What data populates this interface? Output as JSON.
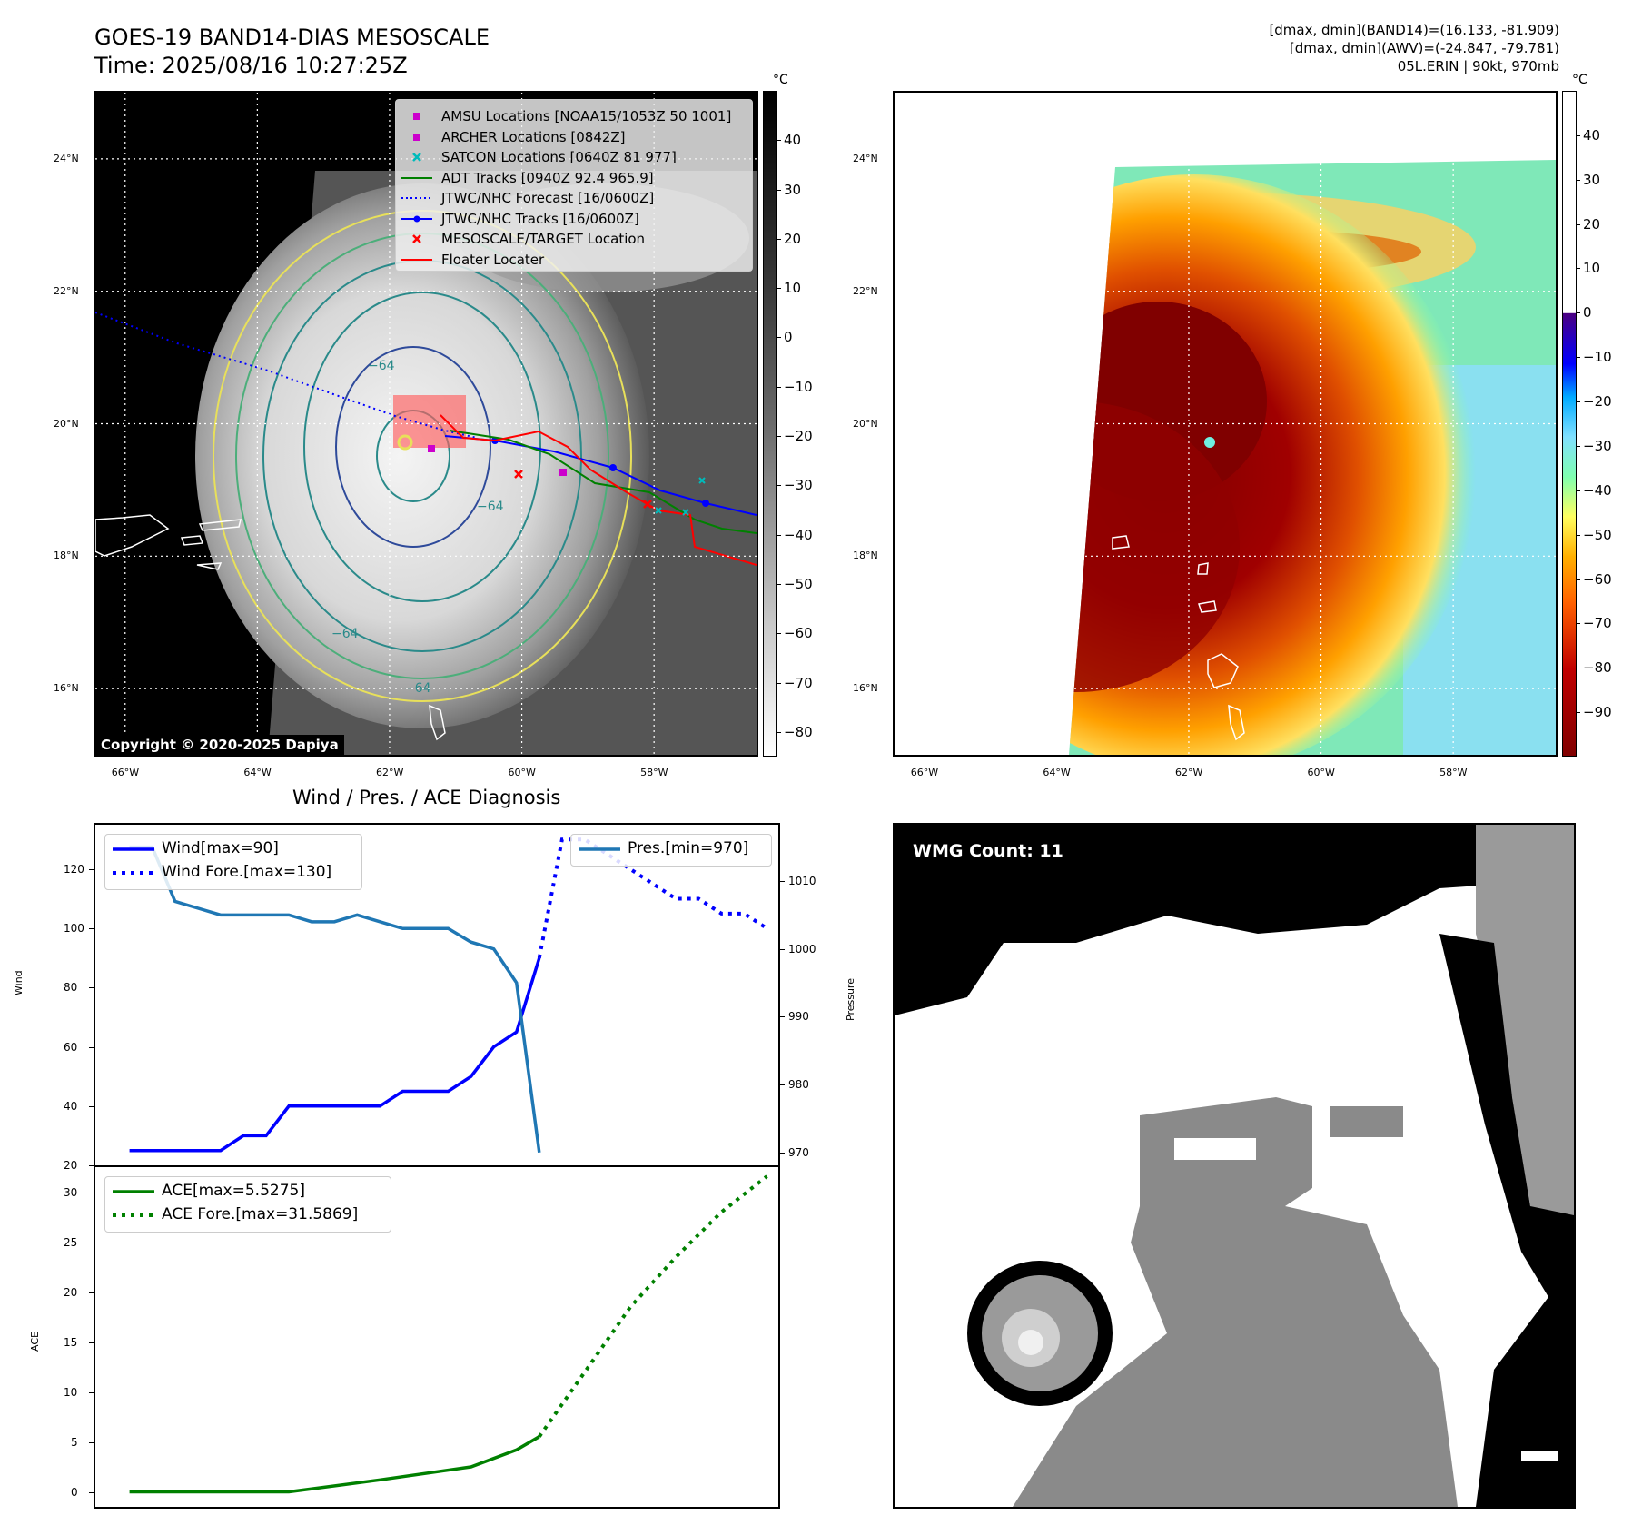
{
  "header": {
    "title_line1": "GOES-19 BAND14-DIAS MESOSCALE",
    "title_line2": "Time: 2025/08/16 10:27:25Z",
    "info_line1": "[dmax, dmin](BAND14)=(16.133, -81.909)",
    "info_line2": "[dmax, dmin](AWV)=(-24.847, -79.781)",
    "info_line3": "05L.ERIN | 90kt, 970mb"
  },
  "map_axes": {
    "lat_labels": [
      "24°N",
      "22°N",
      "20°N",
      "18°N",
      "16°N"
    ],
    "lat_values": [
      24,
      22,
      20,
      18,
      16
    ],
    "lat_range": [
      15,
      25
    ],
    "lon_labels": [
      "66°W",
      "64°W",
      "62°W",
      "60°W",
      "58°W"
    ],
    "lon_values": [
      -66,
      -64,
      -62,
      -60,
      -58
    ],
    "lon_range": [
      -66.45,
      -56.45
    ]
  },
  "colorbar_bw": {
    "unit": "°C",
    "ticks": [
      "40",
      "30",
      "20",
      "10",
      "0",
      "−10",
      "−20",
      "−30",
      "−40",
      "−50",
      "−60",
      "−70",
      "−80"
    ],
    "tick_values": [
      40,
      30,
      20,
      10,
      0,
      -10,
      -20,
      -30,
      -40,
      -50,
      -60,
      -70,
      -80
    ],
    "range": [
      -85,
      50
    ]
  },
  "colorbar_color": {
    "unit": "°C",
    "ticks": [
      "40",
      "30",
      "20",
      "10",
      "0",
      "−10",
      "−20",
      "−30",
      "−40",
      "−50",
      "−60",
      "−70",
      "−80",
      "−90"
    ],
    "tick_values": [
      40,
      30,
      20,
      10,
      0,
      -10,
      -20,
      -30,
      -40,
      -50,
      -60,
      -70,
      -80,
      -90
    ],
    "range": [
      -100,
      50
    ]
  },
  "map_legend": {
    "items": [
      {
        "label": "AMSU Locations [NOAA15/1053Z 50 1001]",
        "marker": "square",
        "color": "#cc00cc"
      },
      {
        "label": "ARCHER Locations [0842Z]",
        "marker": "square",
        "color": "#cc00cc"
      },
      {
        "label": "SATCON Locations [0640Z 81 977]",
        "marker": "x",
        "color": "#00bbbb"
      },
      {
        "label": "ADT Tracks [0940Z 92.4 965.9]",
        "marker": "line",
        "color": "#008000"
      },
      {
        "label": "JTWC/NHC Forecast [16/0600Z]",
        "marker": "dotted",
        "color": "#0000ff"
      },
      {
        "label": "JTWC/NHC Tracks [16/0600Z]",
        "marker": "line-dot",
        "color": "#0000ff"
      },
      {
        "label": "MESOSCALE/TARGET Location",
        "marker": "x",
        "color": "#ff0000"
      },
      {
        "label": "Floater Locater",
        "marker": "line",
        "color": "#ff0000"
      }
    ]
  },
  "map_contour_labels": [
    "−64",
    "−64",
    "−64",
    "−54",
    "−64"
  ],
  "copyright": "Copyright © 2020-2025 Dapiya",
  "wmg_label": "WMG Count: 11",
  "chart_data": [
    {
      "type": "line",
      "title": "Wind / Pres. / ACE Diagnosis",
      "ylabel": "Wind",
      "ylim": [
        20,
        135
      ],
      "yticks": [
        20,
        40,
        60,
        80,
        100,
        120
      ],
      "y2label": "Pressure",
      "y2lim": [
        968.1,
        1018.3
      ],
      "y2ticks": [
        970,
        980,
        990,
        1000,
        1010
      ],
      "xlim": [
        -1.5,
        28.5
      ],
      "series": [
        {
          "name": "Wind[max=90]",
          "color": "#0000ff",
          "style": "solid",
          "axis": "left",
          "x": [
            0,
            1,
            2,
            3,
            4,
            5,
            6,
            7,
            8,
            9,
            10,
            11,
            12,
            13,
            14,
            15,
            16,
            17,
            18
          ],
          "values": [
            25,
            25,
            25,
            25,
            25,
            30,
            30,
            40,
            40,
            40,
            40,
            40,
            45,
            45,
            45,
            50,
            60,
            65,
            90
          ]
        },
        {
          "name": "Wind Fore.[max=130]",
          "color": "#0000ff",
          "style": "dotted",
          "axis": "left",
          "x": [
            18,
            19,
            20,
            21,
            22,
            23,
            24,
            25,
            26,
            27,
            28
          ],
          "values": [
            90,
            130,
            130,
            125,
            120,
            115,
            110,
            110,
            105,
            105,
            100
          ]
        },
        {
          "name": "Pres.[min=970]",
          "color": "#1f77b4",
          "style": "solid",
          "axis": "right",
          "x": [
            0,
            1,
            2,
            3,
            4,
            5,
            6,
            7,
            8,
            9,
            10,
            11,
            12,
            13,
            14,
            15,
            16,
            17,
            18
          ],
          "values": [
            1015,
            1015,
            1007,
            1006,
            1005,
            1005,
            1005,
            1005,
            1004,
            1004,
            1005,
            1004,
            1003,
            1003,
            1003,
            1001,
            1000,
            995,
            970
          ]
        }
      ]
    },
    {
      "type": "line",
      "ylabel": "ACE",
      "ylim": [
        -1.5,
        32.5
      ],
      "yticks": [
        0,
        5,
        10,
        15,
        20,
        25,
        30
      ],
      "xlim": [
        -1.5,
        28.5
      ],
      "series": [
        {
          "name": "ACE[max=5.5275]",
          "color": "#008000",
          "style": "solid",
          "x": [
            0,
            7,
            11,
            15,
            17,
            18
          ],
          "values": [
            0,
            0,
            1.2,
            2.5,
            4.2,
            5.5275
          ]
        },
        {
          "name": "ACE Fore.[max=31.5869]",
          "color": "#008000",
          "style": "dotted",
          "x": [
            18,
            20,
            22,
            24,
            26,
            28
          ],
          "values": [
            5.5275,
            12,
            18.5,
            23.5,
            28,
            31.5869
          ]
        }
      ]
    }
  ]
}
